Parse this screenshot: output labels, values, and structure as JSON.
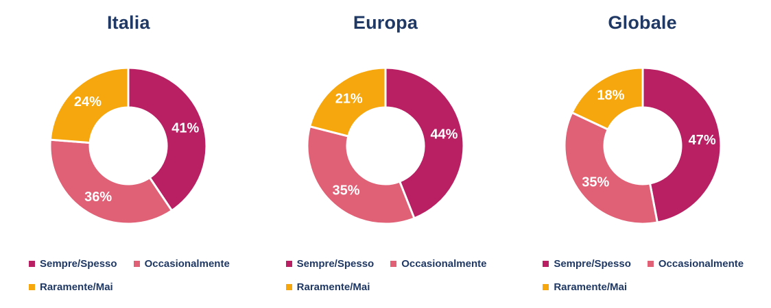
{
  "styles": {
    "background": "#ffffff",
    "title_color": "#1f3864",
    "legend_text_color": "#1f3864",
    "slice_label_color": "#ffffff",
    "separator_color": "#ffffff"
  },
  "chart_data": [
    {
      "type": "pie",
      "subtype": "donut",
      "title": "Italia",
      "categories": [
        "Sempre/Spesso",
        "Occasionalmente",
        "Raramente/Mai"
      ],
      "values": [
        41,
        36,
        24
      ],
      "unit": "%",
      "labels": [
        "41%",
        "36%",
        "24%"
      ],
      "colors": [
        "#b92064",
        "#e06076",
        "#f6a70d"
      ],
      "start_angle_deg": 0,
      "direction": "clockwise",
      "hole_ratio": 0.49,
      "legend_position": "bottom"
    },
    {
      "type": "pie",
      "subtype": "donut",
      "title": "Europa",
      "categories": [
        "Sempre/Spesso",
        "Occasionalmente",
        "Raramente/Mai"
      ],
      "values": [
        44,
        35,
        21
      ],
      "unit": "%",
      "labels": [
        "44%",
        "35%",
        "21%"
      ],
      "colors": [
        "#b92064",
        "#e06076",
        "#f6a70d"
      ],
      "start_angle_deg": 0,
      "direction": "clockwise",
      "hole_ratio": 0.49,
      "legend_position": "bottom"
    },
    {
      "type": "pie",
      "subtype": "donut",
      "title": "Globale",
      "categories": [
        "Sempre/Spesso",
        "Occasionalmente",
        "Raramente/Mai"
      ],
      "values": [
        47,
        35,
        18
      ],
      "unit": "%",
      "labels": [
        "47%",
        "35%",
        "18%"
      ],
      "colors": [
        "#b92064",
        "#e06076",
        "#f6a70d"
      ],
      "start_angle_deg": 0,
      "direction": "clockwise",
      "hole_ratio": 0.49,
      "legend_position": "bottom"
    }
  ]
}
